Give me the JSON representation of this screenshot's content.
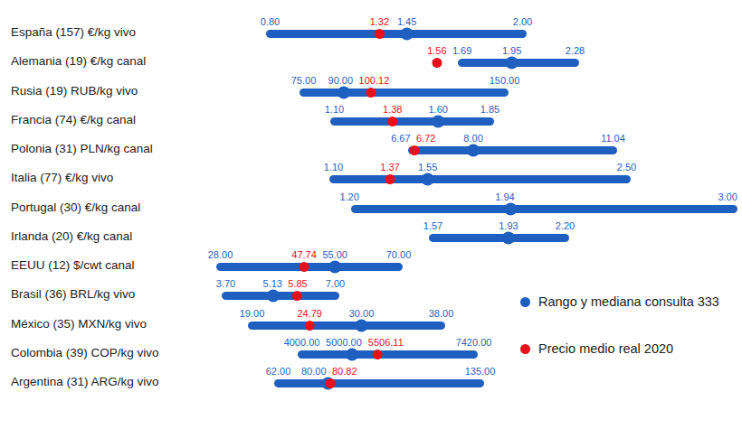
{
  "chart_data": {
    "type": "range",
    "orientation": "horizontal",
    "data_labels": true,
    "tick_labels": false,
    "legend": "bottom-right",
    "categories": [
      "España (157) €/kg vivo",
      "Alemania (19) €/kg canal",
      "Rusia (19) RUB/kg vivo",
      "Francia (74) €/kg canal",
      "Polonia (31) PLN/kg canal",
      "Italia (77) €/kg vivo",
      "Portugal (30) €/kg canal",
      "Irlanda (20) €/kg canal",
      "EEUU (12) $/cwt canal",
      "Brasil (36) BRL/kg vivo",
      "México (35) MXN/kg vivo",
      "Colombia (39) COP/kg vivo",
      "Argentina (31) ARG/kg vivo"
    ],
    "series": [
      {
        "name": "Rango y mediana consulta 333",
        "color": "#1f5fbf",
        "low": [
          0.8,
          1.69,
          75,
          1.1,
          6.67,
          1.1,
          1.2,
          1.57,
          28,
          3.7,
          19,
          4000,
          62
        ],
        "values": [
          1.45,
          1.95,
          90,
          1.6,
          8,
          1.55,
          1.94,
          1.93,
          55,
          5.13,
          30,
          5000,
          80
        ],
        "high": [
          2,
          2.28,
          150,
          1.85,
          11.04,
          2.5,
          3,
          2.2,
          70,
          7,
          38,
          7420,
          135
        ],
        "low_labels": [
          "0.80",
          "1.69",
          "75.00",
          "1.10",
          "6.67",
          "1.10",
          "1.20",
          "1.57",
          "28.00",
          "3.70",
          "19.00",
          "4000.00",
          "62.00"
        ],
        "value_labels": [
          "1.45",
          "1.95",
          "90.00",
          "1.60",
          "8.00",
          "1.55",
          "1.94",
          "1.93",
          "55.00",
          "5.13",
          "30.00",
          "5000.00",
          "80.00"
        ],
        "high_labels": [
          "2.00",
          "2.28",
          "150.00",
          "1.85",
          "11.04",
          "2.50",
          "3.00",
          "2.20",
          "70.00",
          "7.00",
          "38.00",
          "7420.00",
          "135.00"
        ]
      },
      {
        "name": "Precio medio real 2020",
        "color": "#e8111b",
        "values": [
          1.32,
          1.56,
          100.12,
          1.38,
          6.72,
          1.37,
          null,
          null,
          47.74,
          5.85,
          24.79,
          5506.11,
          80.82
        ],
        "value_labels": [
          "1.32",
          "1.56",
          "100.12",
          "1.38",
          "6.72",
          "1.37",
          null,
          null,
          "47.74",
          "5.85",
          "24.79",
          "5506.11",
          "80.82"
        ]
      }
    ]
  }
}
